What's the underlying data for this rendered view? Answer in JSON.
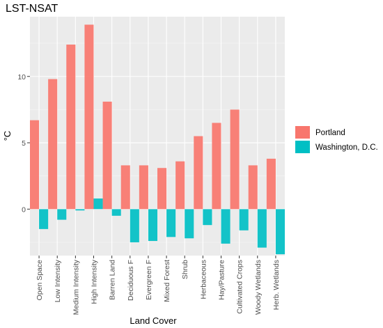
{
  "chart_data": {
    "type": "bar",
    "title": "LST-NSAT",
    "xlabel": "Land Cover",
    "ylabel": "°C",
    "categories": [
      "Open Space",
      "Low Intensity",
      "Medium Intensity",
      "High Intensity",
      "Barren Land",
      "Deciduous F",
      "Evergreen F",
      "Mixed Forest",
      "Shrub",
      "Herbaceous",
      "Hay/Pasture",
      "Cultivated Crops",
      "Woody Wetlands",
      "Herb. Wetlands"
    ],
    "series": [
      {
        "name": "Portland",
        "color": "#f8766d",
        "values": [
          6.7,
          9.8,
          12.4,
          13.9,
          8.1,
          3.3,
          3.3,
          3.1,
          3.6,
          5.5,
          6.5,
          7.5,
          3.3,
          3.8
        ]
      },
      {
        "name": "Washington, D.C.",
        "color": "#00bfc4",
        "values": [
          -1.5,
          -0.8,
          -0.1,
          0.8,
          -0.5,
          -2.5,
          -2.4,
          -2.1,
          -2.2,
          -1.2,
          -2.6,
          -1.6,
          -2.9,
          -3.4
        ]
      }
    ],
    "ylim": [
      -3.5,
      14.5
    ],
    "yticks": [
      0,
      5,
      10
    ],
    "grid": true,
    "legend_position": "right"
  }
}
